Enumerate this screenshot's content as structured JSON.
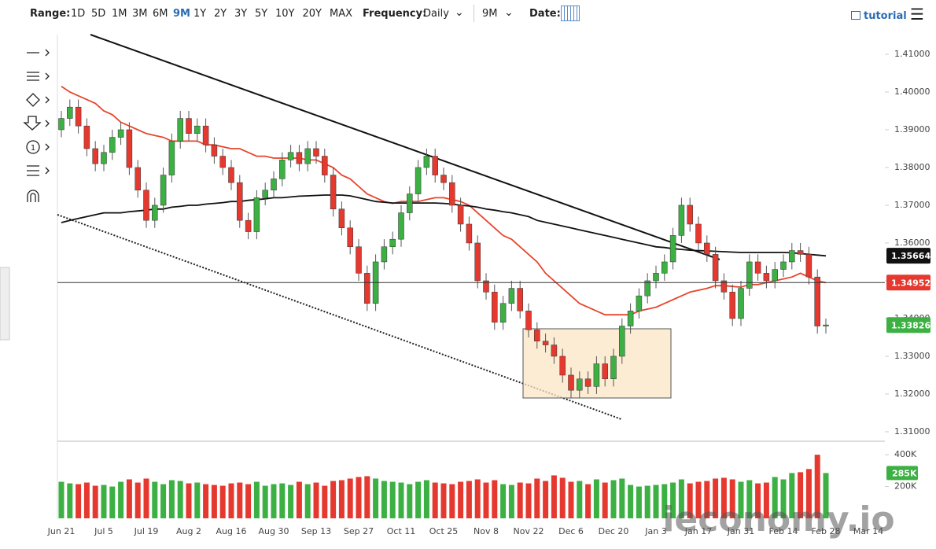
{
  "toolbar": {
    "range_label": "Range:",
    "ranges": [
      "1D",
      "5D",
      "1M",
      "3M",
      "6M",
      "9M",
      "1Y",
      "2Y",
      "3Y",
      "5Y",
      "10Y",
      "20Y",
      "MAX"
    ],
    "active_range": "9M",
    "frequency_label": "Frequency:",
    "frequency": "Daily",
    "period": "9M",
    "date_label": "Date:",
    "tutorial": "tutorial"
  },
  "watermark": "ieconomy.io",
  "chart_data": {
    "type": "candlestick",
    "up_color": "#3cb043",
    "down_color": "#e5392f",
    "categories": [
      "Jun 21",
      null,
      null,
      null,
      null,
      "Jul 5",
      null,
      null,
      null,
      null,
      "Jul 19",
      null,
      null,
      null,
      null,
      "Aug 2",
      null,
      null,
      null,
      null,
      "Aug 16",
      null,
      null,
      null,
      null,
      "Aug 30",
      null,
      null,
      null,
      null,
      "Sep 13",
      null,
      null,
      null,
      null,
      "Sep 27",
      null,
      null,
      null,
      null,
      "Oct 11",
      null,
      null,
      null,
      null,
      "Oct 25",
      null,
      null,
      null,
      null,
      "Nov 8",
      null,
      null,
      null,
      null,
      "Nov 22",
      null,
      null,
      null,
      null,
      "Dec 6",
      null,
      null,
      null,
      null,
      "Dec 20",
      null,
      null,
      null,
      null,
      "Jan 3",
      null,
      null,
      null,
      null,
      "Jan 17",
      null,
      null,
      null,
      null,
      "Jan 31",
      null,
      null,
      null,
      null,
      "Feb 14",
      null,
      null,
      null,
      null,
      "Feb 28",
      null,
      null,
      null,
      null,
      "Mar 14"
    ],
    "open": [
      1.39,
      1.393,
      1.396,
      1.391,
      1.385,
      1.381,
      1.384,
      1.388,
      1.39,
      1.38,
      1.374,
      1.366,
      1.37,
      1.378,
      1.387,
      1.393,
      1.389,
      1.391,
      1.386,
      1.383,
      1.38,
      1.376,
      1.366,
      1.363,
      1.372,
      1.374,
      1.377,
      1.382,
      1.384,
      1.381,
      1.385,
      1.383,
      1.378,
      1.369,
      1.364,
      1.359,
      1.352,
      1.344,
      1.355,
      1.359,
      1.361,
      1.368,
      1.373,
      1.38,
      1.383,
      1.378,
      1.376,
      1.37,
      1.365,
      1.36,
      1.35,
      1.347,
      1.339,
      1.344,
      1.348,
      1.342,
      1.337,
      1.334,
      1.333,
      1.33,
      1.325,
      1.321,
      1.324,
      1.322,
      1.328,
      1.324,
      1.33,
      1.338,
      1.342,
      1.346,
      1.35,
      1.352,
      1.355,
      1.362,
      1.37,
      1.365,
      1.36,
      1.357,
      1.35,
      1.347,
      1.34,
      1.348,
      1.355,
      1.352,
      1.35,
      1.353,
      1.355,
      1.358,
      1.357,
      1.351,
      1.338,
      null,
      null,
      null,
      null,
      null
    ],
    "high": [
      1.395,
      1.398,
      1.398,
      1.393,
      1.387,
      1.386,
      1.39,
      1.392,
      1.392,
      1.382,
      1.376,
      1.372,
      1.38,
      1.389,
      1.395,
      1.395,
      1.393,
      1.393,
      1.388,
      1.385,
      1.382,
      1.378,
      1.368,
      1.374,
      1.376,
      1.379,
      1.384,
      1.386,
      1.386,
      1.387,
      1.387,
      1.385,
      1.38,
      1.371,
      1.366,
      1.361,
      1.354,
      1.357,
      1.361,
      1.363,
      1.37,
      1.375,
      1.382,
      1.385,
      1.385,
      1.38,
      1.378,
      1.372,
      1.367,
      1.362,
      1.352,
      1.349,
      1.346,
      1.35,
      1.35,
      1.344,
      1.339,
      1.336,
      1.335,
      1.332,
      1.327,
      1.326,
      1.326,
      1.33,
      1.33,
      1.332,
      1.34,
      1.344,
      1.348,
      1.352,
      1.354,
      1.357,
      1.364,
      1.372,
      1.372,
      1.367,
      1.362,
      1.359,
      1.352,
      1.349,
      1.35,
      1.357,
      1.357,
      1.354,
      1.355,
      1.357,
      1.36,
      1.36,
      1.359,
      1.353,
      1.34,
      null,
      null,
      null,
      null,
      null
    ],
    "low": [
      1.388,
      1.391,
      1.389,
      1.383,
      1.379,
      1.379,
      1.382,
      1.386,
      1.378,
      1.372,
      1.364,
      1.364,
      1.368,
      1.376,
      1.385,
      1.387,
      1.387,
      1.384,
      1.381,
      1.378,
      1.374,
      1.364,
      1.361,
      1.361,
      1.37,
      1.372,
      1.375,
      1.38,
      1.379,
      1.379,
      1.381,
      1.376,
      1.367,
      1.362,
      1.357,
      1.35,
      1.342,
      1.342,
      1.353,
      1.357,
      1.359,
      1.366,
      1.371,
      1.378,
      1.376,
      1.374,
      1.368,
      1.363,
      1.358,
      1.348,
      1.345,
      1.337,
      1.337,
      1.342,
      1.34,
      1.335,
      1.332,
      1.331,
      1.328,
      1.323,
      1.319,
      1.319,
      1.32,
      1.32,
      1.322,
      1.322,
      1.328,
      1.336,
      1.34,
      1.344,
      1.348,
      1.35,
      1.353,
      1.36,
      1.363,
      1.358,
      1.355,
      1.348,
      1.345,
      1.338,
      1.338,
      1.346,
      1.35,
      1.348,
      1.348,
      1.351,
      1.353,
      1.355,
      1.349,
      1.336,
      1.336,
      null,
      null,
      null,
      null,
      null
    ],
    "close": [
      1.393,
      1.396,
      1.391,
      1.385,
      1.381,
      1.384,
      1.388,
      1.39,
      1.38,
      1.374,
      1.366,
      1.37,
      1.378,
      1.387,
      1.393,
      1.389,
      1.391,
      1.386,
      1.383,
      1.38,
      1.376,
      1.366,
      1.363,
      1.372,
      1.374,
      1.377,
      1.382,
      1.384,
      1.381,
      1.385,
      1.383,
      1.378,
      1.369,
      1.364,
      1.359,
      1.352,
      1.344,
      1.355,
      1.359,
      1.361,
      1.368,
      1.373,
      1.38,
      1.383,
      1.378,
      1.376,
      1.37,
      1.365,
      1.36,
      1.35,
      1.347,
      1.339,
      1.344,
      1.348,
      1.342,
      1.337,
      1.334,
      1.333,
      1.33,
      1.325,
      1.321,
      1.324,
      1.322,
      1.328,
      1.324,
      1.33,
      1.338,
      1.342,
      1.346,
      1.35,
      1.352,
      1.355,
      1.362,
      1.37,
      1.365,
      1.36,
      1.357,
      1.35,
      1.347,
      1.34,
      1.348,
      1.355,
      1.352,
      1.35,
      1.353,
      1.355,
      1.358,
      1.357,
      1.351,
      1.338,
      1.3383,
      null,
      null,
      null,
      null,
      null
    ],
    "moving_averages": [
      {
        "color": "#e8452c",
        "values": [
          1.4015,
          1.4,
          1.399,
          1.398,
          1.397,
          1.395,
          1.394,
          1.392,
          1.391,
          1.39,
          1.389,
          1.3885,
          1.388,
          1.387,
          1.387,
          1.387,
          1.387,
          1.386,
          1.386,
          1.3855,
          1.385,
          1.385,
          1.384,
          1.383,
          1.383,
          1.3825,
          1.3825,
          1.3825,
          1.3825,
          1.382,
          1.382,
          1.381,
          1.38,
          1.378,
          1.377,
          1.375,
          1.373,
          1.372,
          1.371,
          1.3705,
          1.371,
          1.371,
          1.371,
          1.3715,
          1.372,
          1.372,
          1.3715,
          1.371,
          1.37,
          1.368,
          1.366,
          1.364,
          1.362,
          1.361,
          1.359,
          1.357,
          1.355,
          1.352,
          1.35,
          1.348,
          1.346,
          1.344,
          1.343,
          1.342,
          1.341,
          1.341,
          1.341,
          1.341,
          1.342,
          1.3425,
          1.343,
          1.344,
          1.345,
          1.346,
          1.347,
          1.3475,
          1.348,
          1.3487,
          1.3487,
          1.3485,
          1.3483,
          1.349,
          1.349,
          1.3495,
          1.35,
          1.3505,
          1.351,
          1.352,
          1.351,
          1.35,
          1.3495,
          null,
          null,
          null,
          null,
          null
        ]
      },
      {
        "color": "#111111",
        "values": [
          1.3654,
          1.366,
          1.3665,
          1.367,
          1.3675,
          1.368,
          1.368,
          1.368,
          1.3683,
          1.3685,
          1.3687,
          1.369,
          1.369,
          1.3695,
          1.3697,
          1.37,
          1.37,
          1.3703,
          1.3705,
          1.3707,
          1.371,
          1.371,
          1.3713,
          1.3715,
          1.3717,
          1.372,
          1.372,
          1.3722,
          1.3724,
          1.3725,
          1.3726,
          1.3727,
          1.3727,
          1.3727,
          1.3725,
          1.372,
          1.3715,
          1.371,
          1.3708,
          1.3706,
          1.3706,
          1.3706,
          1.3706,
          1.3706,
          1.3706,
          1.3705,
          1.3703,
          1.37,
          1.3698,
          1.3695,
          1.369,
          1.3687,
          1.3683,
          1.368,
          1.3675,
          1.367,
          1.366,
          1.3655,
          1.365,
          1.3645,
          1.364,
          1.3635,
          1.363,
          1.3625,
          1.362,
          1.3615,
          1.361,
          1.3605,
          1.36,
          1.3595,
          1.359,
          1.3588,
          1.3585,
          1.3583,
          1.3581,
          1.358,
          1.3579,
          1.3578,
          1.3577,
          1.3576,
          1.3575,
          1.3575,
          1.3575,
          1.3575,
          1.3575,
          1.3575,
          1.3574,
          1.3572,
          1.357,
          1.3568,
          1.3566,
          null,
          null,
          null,
          null,
          null
        ]
      }
    ],
    "price_markers": [
      {
        "value": 1.35664,
        "color": "#111111"
      },
      {
        "value": 1.34952,
        "color": "#e5392f"
      },
      {
        "value": 1.33826,
        "color": "#3cb043"
      }
    ],
    "ylim": [
      1.3077,
      1.4152
    ],
    "yticks": [
      {
        "value": 1.31,
        "label": "1.31000"
      },
      {
        "value": 1.32,
        "label": "1.32000"
      },
      {
        "value": 1.33,
        "label": "1.33000"
      },
      {
        "value": 1.34,
        "label": "1.34000"
      },
      {
        "value": 1.35,
        "label": "1.35000"
      },
      {
        "value": 1.36,
        "label": "1.36000"
      },
      {
        "value": 1.37,
        "label": "1.37000"
      },
      {
        "value": 1.38,
        "label": "1.38000"
      },
      {
        "value": 1.39,
        "label": "1.39000"
      },
      {
        "value": 1.4,
        "label": "1.40000"
      },
      {
        "value": 1.41,
        "label": "1.41000"
      }
    ],
    "volume": {
      "values": [
        230000,
        220000,
        215000,
        225000,
        205000,
        210000,
        200000,
        230000,
        245000,
        225000,
        250000,
        230000,
        215000,
        240000,
        235000,
        220000,
        225000,
        215000,
        210000,
        205000,
        220000,
        225000,
        215000,
        230000,
        205000,
        215000,
        220000,
        210000,
        230000,
        215000,
        225000,
        205000,
        235000,
        240000,
        250000,
        260000,
        265000,
        250000,
        235000,
        230000,
        225000,
        215000,
        230000,
        240000,
        225000,
        220000,
        215000,
        230000,
        235000,
        245000,
        225000,
        240000,
        215000,
        210000,
        225000,
        220000,
        250000,
        235000,
        270000,
        255000,
        230000,
        235000,
        215000,
        245000,
        225000,
        240000,
        250000,
        210000,
        200000,
        205000,
        210000,
        215000,
        225000,
        245000,
        220000,
        230000,
        235000,
        250000,
        255000,
        245000,
        230000,
        240000,
        220000,
        225000,
        260000,
        245000,
        285000,
        290000,
        310000,
        400000,
        285000,
        null,
        null,
        null,
        null,
        null
      ],
      "ylim": [
        0,
        470000
      ],
      "yticks": [
        {
          "value": 200000,
          "label": "200K"
        },
        {
          "value": 400000,
          "label": "400K"
        }
      ],
      "marker": {
        "value": 285000,
        "label": "285K",
        "color": "#3cb043"
      }
    }
  }
}
